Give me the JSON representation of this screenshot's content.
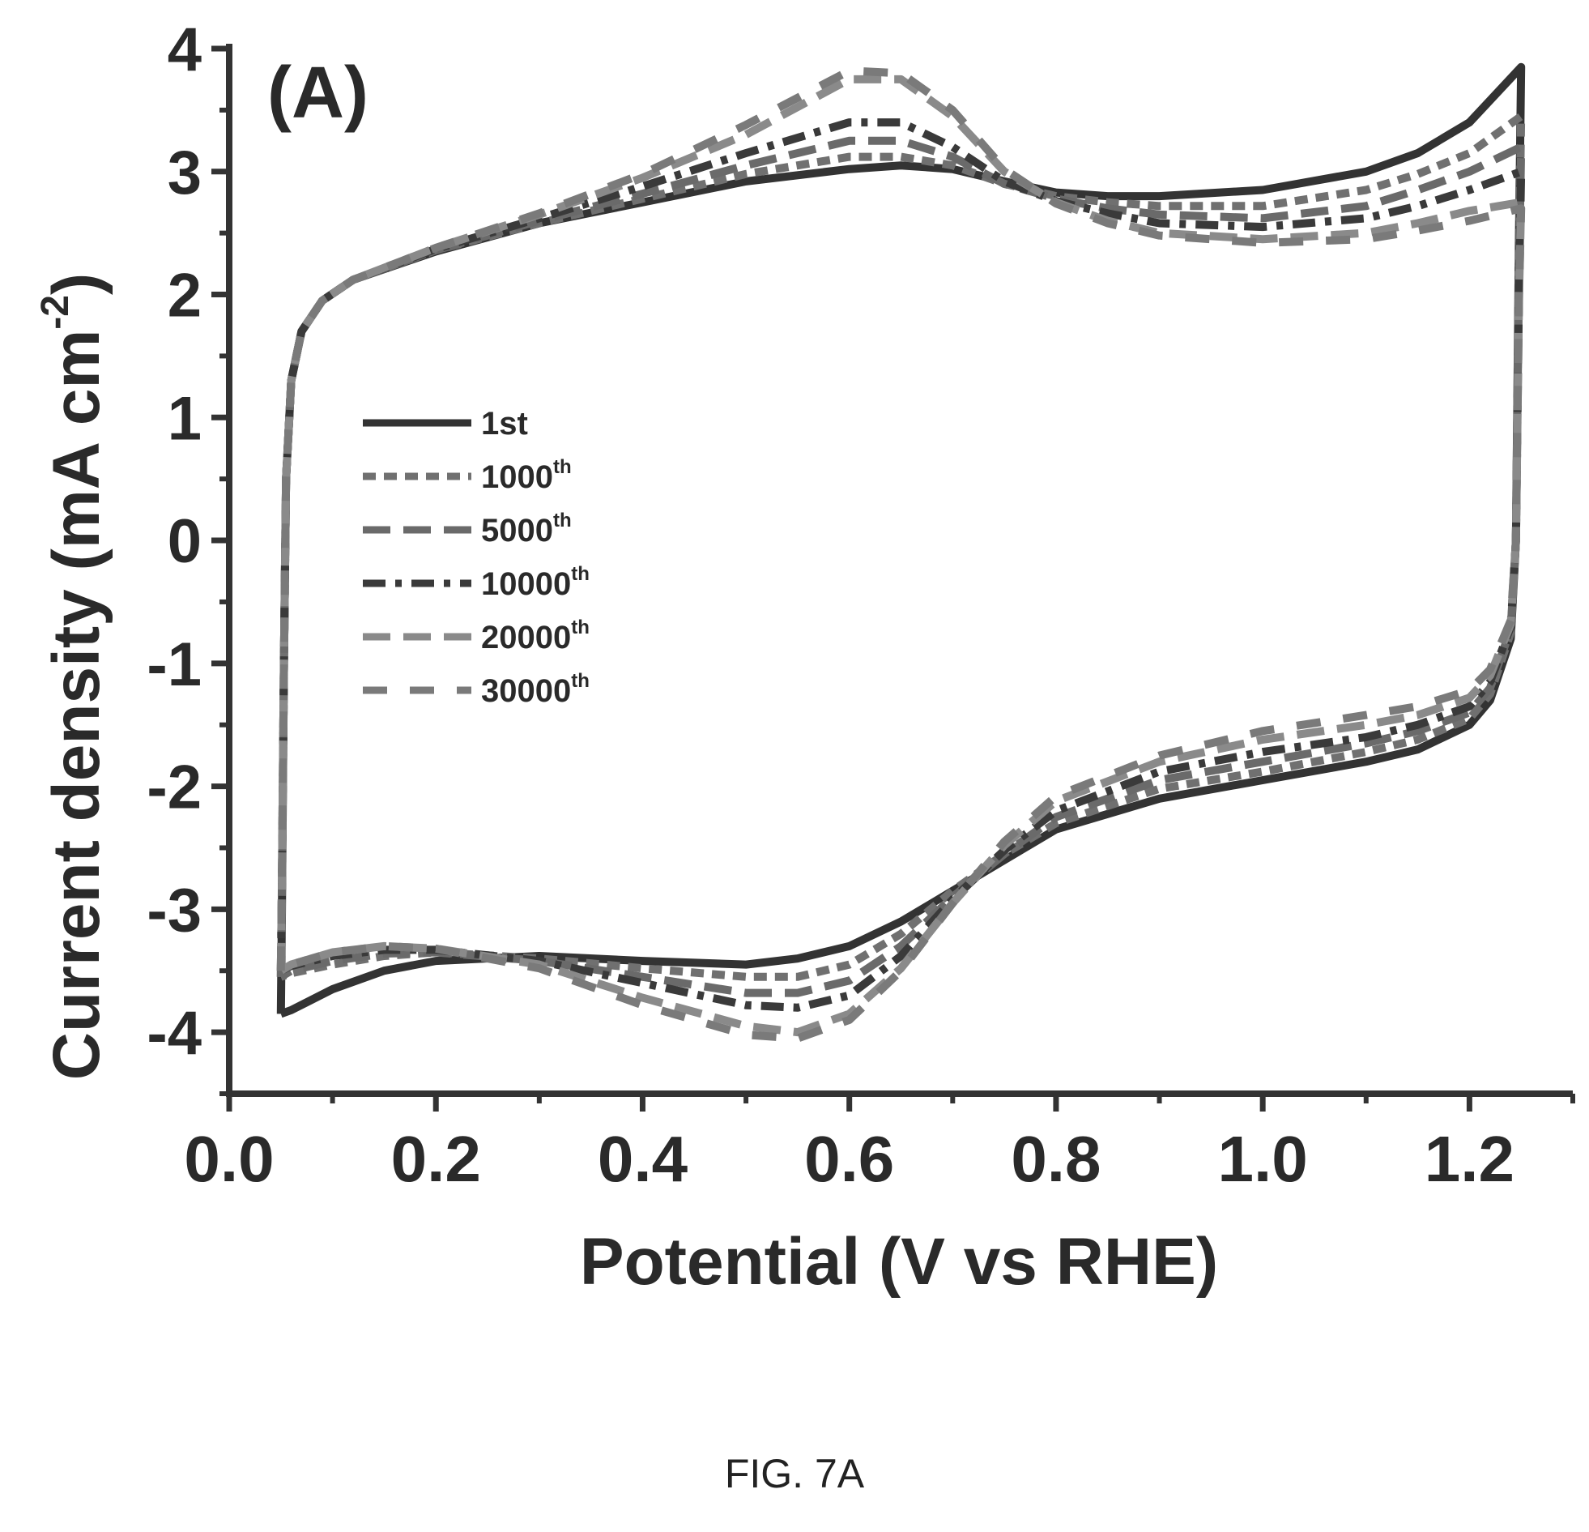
{
  "caption": "FIG. 7A",
  "chart_data": {
    "type": "line",
    "panel_label": "(A)",
    "xlabel": "Potential (V vs RHE)",
    "ylabel": "Current density (mA cm",
    "ylabel_sup": "-2",
    "xlim": [
      0.0,
      1.3
    ],
    "ylim": [
      -4.5,
      4.0
    ],
    "xticks": [
      0.0,
      0.2,
      0.4,
      0.6,
      0.8,
      1.0,
      1.2
    ],
    "xtick_labels": [
      "0.0",
      "0.2",
      "0.4",
      "0.6",
      "0.8",
      "1.0",
      "1.2"
    ],
    "yticks": [
      -4,
      -3,
      -2,
      -1,
      0,
      1,
      2,
      3,
      4
    ],
    "ytick_labels": [
      "-4",
      "-3",
      "-2",
      "-1",
      "0",
      "1",
      "2",
      "3",
      "4"
    ],
    "grid": false,
    "legend_position": "center-left",
    "series": [
      {
        "name": "1st",
        "sup": "",
        "color": "#333333",
        "dash": "solid",
        "anodic": [
          [
            0.05,
            -3.85
          ],
          [
            0.051,
            -3.0
          ],
          [
            0.053,
            -1.0
          ],
          [
            0.055,
            0.5
          ],
          [
            0.06,
            1.3
          ],
          [
            0.07,
            1.7
          ],
          [
            0.09,
            1.95
          ],
          [
            0.12,
            2.12
          ],
          [
            0.2,
            2.35
          ],
          [
            0.3,
            2.58
          ],
          [
            0.4,
            2.75
          ],
          [
            0.5,
            2.92
          ],
          [
            0.6,
            3.02
          ],
          [
            0.65,
            3.05
          ],
          [
            0.7,
            3.02
          ],
          [
            0.75,
            2.92
          ],
          [
            0.8,
            2.83
          ],
          [
            0.85,
            2.8
          ],
          [
            0.9,
            2.8
          ],
          [
            1.0,
            2.85
          ],
          [
            1.1,
            3.0
          ],
          [
            1.15,
            3.15
          ],
          [
            1.2,
            3.4
          ],
          [
            1.25,
            3.85
          ]
        ],
        "cathodic": [
          [
            1.25,
            3.85
          ],
          [
            1.248,
            2.5
          ],
          [
            1.245,
            0.0
          ],
          [
            1.24,
            -0.8
          ],
          [
            1.22,
            -1.3
          ],
          [
            1.2,
            -1.5
          ],
          [
            1.15,
            -1.7
          ],
          [
            1.1,
            -1.8
          ],
          [
            1.0,
            -1.95
          ],
          [
            0.9,
            -2.1
          ],
          [
            0.8,
            -2.35
          ],
          [
            0.75,
            -2.6
          ],
          [
            0.7,
            -2.85
          ],
          [
            0.65,
            -3.1
          ],
          [
            0.6,
            -3.3
          ],
          [
            0.55,
            -3.4
          ],
          [
            0.5,
            -3.45
          ],
          [
            0.4,
            -3.42
          ],
          [
            0.3,
            -3.38
          ],
          [
            0.2,
            -3.42
          ],
          [
            0.15,
            -3.5
          ],
          [
            0.1,
            -3.65
          ],
          [
            0.06,
            -3.82
          ],
          [
            0.05,
            -3.85
          ]
        ]
      },
      {
        "name": "1000",
        "sup": "th",
        "color": "#707070",
        "dash": "short",
        "anodic": [
          [
            0.05,
            -3.55
          ],
          [
            0.051,
            -2.8
          ],
          [
            0.053,
            -1.0
          ],
          [
            0.055,
            0.5
          ],
          [
            0.06,
            1.3
          ],
          [
            0.07,
            1.7
          ],
          [
            0.09,
            1.95
          ],
          [
            0.12,
            2.12
          ],
          [
            0.2,
            2.36
          ],
          [
            0.3,
            2.58
          ],
          [
            0.4,
            2.78
          ],
          [
            0.5,
            2.98
          ],
          [
            0.6,
            3.12
          ],
          [
            0.65,
            3.12
          ],
          [
            0.7,
            3.05
          ],
          [
            0.75,
            2.9
          ],
          [
            0.8,
            2.8
          ],
          [
            0.85,
            2.75
          ],
          [
            0.9,
            2.72
          ],
          [
            1.0,
            2.72
          ],
          [
            1.1,
            2.85
          ],
          [
            1.15,
            2.98
          ],
          [
            1.2,
            3.15
          ],
          [
            1.25,
            3.45
          ]
        ],
        "cathodic": [
          [
            1.25,
            3.45
          ],
          [
            1.248,
            2.3
          ],
          [
            1.245,
            0.0
          ],
          [
            1.24,
            -0.75
          ],
          [
            1.22,
            -1.25
          ],
          [
            1.2,
            -1.45
          ],
          [
            1.15,
            -1.62
          ],
          [
            1.1,
            -1.72
          ],
          [
            1.0,
            -1.88
          ],
          [
            0.9,
            -2.02
          ],
          [
            0.8,
            -2.3
          ],
          [
            0.75,
            -2.55
          ],
          [
            0.7,
            -2.85
          ],
          [
            0.65,
            -3.2
          ],
          [
            0.6,
            -3.45
          ],
          [
            0.55,
            -3.55
          ],
          [
            0.5,
            -3.55
          ],
          [
            0.4,
            -3.48
          ],
          [
            0.3,
            -3.4
          ],
          [
            0.2,
            -3.35
          ],
          [
            0.15,
            -3.38
          ],
          [
            0.1,
            -3.45
          ],
          [
            0.06,
            -3.52
          ],
          [
            0.05,
            -3.55
          ]
        ]
      },
      {
        "name": "5000",
        "sup": "th",
        "color": "#6a6a6a",
        "dash": "long",
        "anodic": [
          [
            0.05,
            -3.55
          ],
          [
            0.051,
            -2.8
          ],
          [
            0.053,
            -1.0
          ],
          [
            0.055,
            0.5
          ],
          [
            0.06,
            1.3
          ],
          [
            0.07,
            1.7
          ],
          [
            0.09,
            1.95
          ],
          [
            0.12,
            2.12
          ],
          [
            0.2,
            2.36
          ],
          [
            0.3,
            2.6
          ],
          [
            0.4,
            2.82
          ],
          [
            0.5,
            3.05
          ],
          [
            0.6,
            3.25
          ],
          [
            0.65,
            3.25
          ],
          [
            0.7,
            3.12
          ],
          [
            0.75,
            2.9
          ],
          [
            0.8,
            2.78
          ],
          [
            0.85,
            2.7
          ],
          [
            0.9,
            2.65
          ],
          [
            1.0,
            2.62
          ],
          [
            1.1,
            2.72
          ],
          [
            1.15,
            2.85
          ],
          [
            1.2,
            3.0
          ],
          [
            1.25,
            3.2
          ]
        ],
        "cathodic": [
          [
            1.25,
            3.2
          ],
          [
            1.248,
            2.2
          ],
          [
            1.245,
            0.0
          ],
          [
            1.24,
            -0.72
          ],
          [
            1.22,
            -1.2
          ],
          [
            1.2,
            -1.4
          ],
          [
            1.15,
            -1.55
          ],
          [
            1.1,
            -1.65
          ],
          [
            1.0,
            -1.8
          ],
          [
            0.9,
            -1.95
          ],
          [
            0.8,
            -2.25
          ],
          [
            0.75,
            -2.55
          ],
          [
            0.7,
            -2.9
          ],
          [
            0.65,
            -3.3
          ],
          [
            0.6,
            -3.58
          ],
          [
            0.55,
            -3.68
          ],
          [
            0.5,
            -3.68
          ],
          [
            0.4,
            -3.55
          ],
          [
            0.3,
            -3.42
          ],
          [
            0.2,
            -3.35
          ],
          [
            0.15,
            -3.36
          ],
          [
            0.1,
            -3.42
          ],
          [
            0.06,
            -3.5
          ],
          [
            0.05,
            -3.55
          ]
        ]
      },
      {
        "name": "10000",
        "sup": "th",
        "color": "#3a3a3a",
        "dash": "dashdot",
        "anodic": [
          [
            0.05,
            -3.5
          ],
          [
            0.051,
            -2.8
          ],
          [
            0.053,
            -1.0
          ],
          [
            0.055,
            0.5
          ],
          [
            0.06,
            1.3
          ],
          [
            0.07,
            1.7
          ],
          [
            0.09,
            1.95
          ],
          [
            0.12,
            2.12
          ],
          [
            0.2,
            2.37
          ],
          [
            0.3,
            2.62
          ],
          [
            0.4,
            2.88
          ],
          [
            0.5,
            3.15
          ],
          [
            0.6,
            3.4
          ],
          [
            0.65,
            3.4
          ],
          [
            0.7,
            3.2
          ],
          [
            0.75,
            2.92
          ],
          [
            0.8,
            2.76
          ],
          [
            0.85,
            2.66
          ],
          [
            0.9,
            2.58
          ],
          [
            1.0,
            2.55
          ],
          [
            1.1,
            2.62
          ],
          [
            1.15,
            2.72
          ],
          [
            1.2,
            2.85
          ],
          [
            1.25,
            3.0
          ]
        ],
        "cathodic": [
          [
            1.25,
            3.0
          ],
          [
            1.248,
            2.1
          ],
          [
            1.245,
            0.0
          ],
          [
            1.24,
            -0.7
          ],
          [
            1.22,
            -1.15
          ],
          [
            1.2,
            -1.35
          ],
          [
            1.15,
            -1.5
          ],
          [
            1.1,
            -1.6
          ],
          [
            1.0,
            -1.72
          ],
          [
            0.9,
            -1.88
          ],
          [
            0.8,
            -2.2
          ],
          [
            0.75,
            -2.52
          ],
          [
            0.7,
            -2.92
          ],
          [
            0.65,
            -3.38
          ],
          [
            0.6,
            -3.7
          ],
          [
            0.55,
            -3.8
          ],
          [
            0.5,
            -3.78
          ],
          [
            0.4,
            -3.6
          ],
          [
            0.3,
            -3.42
          ],
          [
            0.2,
            -3.33
          ],
          [
            0.15,
            -3.33
          ],
          [
            0.1,
            -3.38
          ],
          [
            0.06,
            -3.46
          ],
          [
            0.05,
            -3.5
          ]
        ]
      },
      {
        "name": "20000",
        "sup": "th",
        "color": "#8a8a8a",
        "dash": "long",
        "anodic": [
          [
            0.05,
            -3.5
          ],
          [
            0.051,
            -2.8
          ],
          [
            0.053,
            -1.0
          ],
          [
            0.055,
            0.5
          ],
          [
            0.06,
            1.3
          ],
          [
            0.07,
            1.7
          ],
          [
            0.09,
            1.95
          ],
          [
            0.12,
            2.12
          ],
          [
            0.2,
            2.38
          ],
          [
            0.3,
            2.65
          ],
          [
            0.4,
            2.95
          ],
          [
            0.5,
            3.3
          ],
          [
            0.6,
            3.75
          ],
          [
            0.65,
            3.75
          ],
          [
            0.7,
            3.45
          ],
          [
            0.75,
            3.0
          ],
          [
            0.8,
            2.75
          ],
          [
            0.85,
            2.6
          ],
          [
            0.9,
            2.5
          ],
          [
            1.0,
            2.45
          ],
          [
            1.1,
            2.5
          ],
          [
            1.15,
            2.58
          ],
          [
            1.2,
            2.68
          ],
          [
            1.25,
            2.75
          ]
        ],
        "cathodic": [
          [
            1.25,
            2.75
          ],
          [
            1.248,
            2.0
          ],
          [
            1.245,
            0.0
          ],
          [
            1.24,
            -0.68
          ],
          [
            1.22,
            -1.1
          ],
          [
            1.2,
            -1.28
          ],
          [
            1.15,
            -1.42
          ],
          [
            1.1,
            -1.5
          ],
          [
            1.0,
            -1.62
          ],
          [
            0.9,
            -1.8
          ],
          [
            0.8,
            -2.12
          ],
          [
            0.75,
            -2.48
          ],
          [
            0.7,
            -2.95
          ],
          [
            0.65,
            -3.48
          ],
          [
            0.6,
            -3.85
          ],
          [
            0.55,
            -4.0
          ],
          [
            0.5,
            -3.95
          ],
          [
            0.4,
            -3.72
          ],
          [
            0.3,
            -3.45
          ],
          [
            0.2,
            -3.32
          ],
          [
            0.15,
            -3.3
          ],
          [
            0.1,
            -3.35
          ],
          [
            0.06,
            -3.45
          ],
          [
            0.05,
            -3.5
          ]
        ]
      },
      {
        "name": "30000",
        "sup": "th",
        "color": "#7a7a7a",
        "dash": "longgap",
        "anodic": [
          [
            0.05,
            -3.5
          ],
          [
            0.051,
            -2.8
          ],
          [
            0.053,
            -1.0
          ],
          [
            0.055,
            0.5
          ],
          [
            0.06,
            1.3
          ],
          [
            0.07,
            1.7
          ],
          [
            0.09,
            1.95
          ],
          [
            0.12,
            2.12
          ],
          [
            0.2,
            2.38
          ],
          [
            0.3,
            2.66
          ],
          [
            0.4,
            2.98
          ],
          [
            0.5,
            3.38
          ],
          [
            0.6,
            3.82
          ],
          [
            0.65,
            3.8
          ],
          [
            0.7,
            3.5
          ],
          [
            0.75,
            3.02
          ],
          [
            0.8,
            2.74
          ],
          [
            0.85,
            2.58
          ],
          [
            0.9,
            2.48
          ],
          [
            1.0,
            2.42
          ],
          [
            1.1,
            2.45
          ],
          [
            1.15,
            2.52
          ],
          [
            1.2,
            2.6
          ],
          [
            1.25,
            2.7
          ]
        ],
        "cathodic": [
          [
            1.25,
            2.7
          ],
          [
            1.248,
            2.0
          ],
          [
            1.245,
            0.0
          ],
          [
            1.24,
            -0.65
          ],
          [
            1.22,
            -1.05
          ],
          [
            1.2,
            -1.22
          ],
          [
            1.15,
            -1.35
          ],
          [
            1.1,
            -1.42
          ],
          [
            1.0,
            -1.55
          ],
          [
            0.9,
            -1.75
          ],
          [
            0.8,
            -2.08
          ],
          [
            0.75,
            -2.45
          ],
          [
            0.7,
            -2.95
          ],
          [
            0.65,
            -3.5
          ],
          [
            0.6,
            -3.9
          ],
          [
            0.55,
            -4.05
          ],
          [
            0.5,
            -4.02
          ],
          [
            0.4,
            -3.78
          ],
          [
            0.3,
            -3.48
          ],
          [
            0.2,
            -3.32
          ],
          [
            0.15,
            -3.3
          ],
          [
            0.1,
            -3.35
          ],
          [
            0.06,
            -3.45
          ],
          [
            0.05,
            -3.5
          ]
        ]
      }
    ]
  }
}
